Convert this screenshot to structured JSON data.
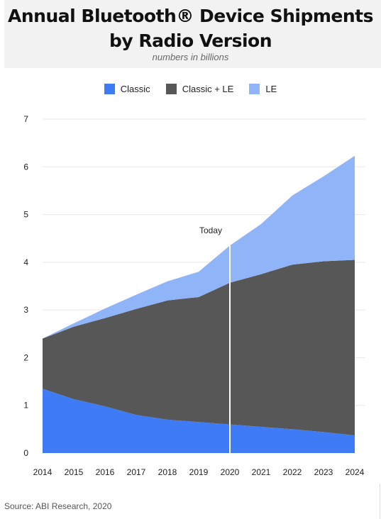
{
  "header": {
    "title_line1": "Annual Bluetooth® Device Shipments",
    "title_line2": "by Radio Version",
    "subtitle": "numbers in billions"
  },
  "source": "Source: ABI Research, 2020",
  "chart_data": {
    "type": "area",
    "stacked": true,
    "title": "Annual Bluetooth® Device Shipments by Radio Version",
    "subtitle": "numbers in billions",
    "xlabel": "",
    "ylabel": "",
    "x": [
      "2014",
      "2015",
      "2016",
      "2017",
      "2018",
      "2019",
      "2020",
      "2021",
      "2022",
      "2023",
      "2024"
    ],
    "ylim": [
      0,
      7
    ],
    "yticks": [
      0,
      1,
      2,
      3,
      4,
      5,
      6,
      7
    ],
    "grid": true,
    "legend_position": "top-center",
    "annotation": {
      "label": "Today",
      "x": "2020"
    },
    "series": [
      {
        "name": "Classic",
        "color": "#3f7bf4",
        "values": [
          1.35,
          1.13,
          0.98,
          0.8,
          0.7,
          0.65,
          0.6,
          0.55,
          0.5,
          0.44,
          0.37
        ]
      },
      {
        "name": "Classic + LE",
        "color": "#575757",
        "values": [
          1.05,
          1.52,
          1.85,
          2.22,
          2.5,
          2.62,
          2.97,
          3.2,
          3.45,
          3.58,
          3.68
        ]
      },
      {
        "name": "LE",
        "color": "#8fb5f8",
        "values": [
          0.0,
          0.07,
          0.2,
          0.3,
          0.4,
          0.53,
          0.78,
          1.05,
          1.45,
          1.78,
          2.18
        ]
      }
    ]
  }
}
